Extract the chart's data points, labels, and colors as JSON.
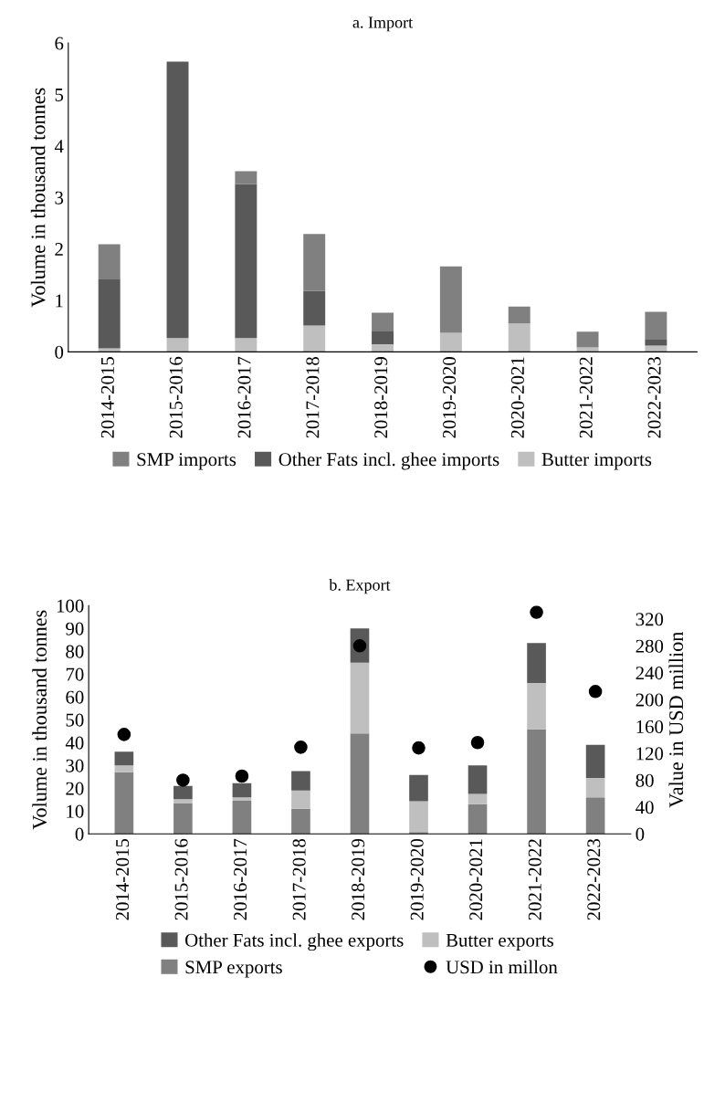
{
  "chart_data": [
    {
      "type": "bar",
      "title": "a. Import",
      "ylabel": "Volume in thousand tonnes",
      "stacked": true,
      "legend": "bottom",
      "grid": false,
      "categories": [
        "2014-2015",
        "2015-2016",
        "2016-2017",
        "2017-2018",
        "2018-2019",
        "2019-2020",
        "2020-2021",
        "2021-2022",
        "2022-2023"
      ],
      "ylim": [
        0,
        6
      ],
      "yticks": [
        0,
        1,
        2,
        3,
        4,
        5,
        6
      ],
      "series": [
        {
          "name": "Butter imports",
          "color": "#bfbfbf",
          "values": [
            0.07,
            0.27,
            0.27,
            0.51,
            0.15,
            0.37,
            0.55,
            0.09,
            0.12
          ]
        },
        {
          "name": "Other Fats incl. ghee imports",
          "color": "#595959",
          "values": [
            1.35,
            5.37,
            2.99,
            0.67,
            0.26,
            0,
            0,
            0.02,
            0.13
          ]
        },
        {
          "name": "SMP imports",
          "color": "#808080",
          "values": [
            0.67,
            0,
            0.25,
            1.11,
            0.35,
            1.29,
            0.33,
            0.28,
            0.53
          ]
        }
      ]
    },
    {
      "type": "bar",
      "title": "b. Export",
      "ylabel": "Volume in thousand tonnes",
      "y2label": "Value in USD million",
      "stacked": true,
      "legend": "bottom",
      "grid": false,
      "categories": [
        "2014-2015",
        "2015-2016",
        "2016-2017",
        "2017-2018",
        "2018-2019",
        "2019-2020",
        "2020-2021",
        "2021-2022",
        "2022-2023"
      ],
      "ylim": [
        0,
        100
      ],
      "yticks": [
        0,
        10,
        20,
        30,
        40,
        50,
        60,
        70,
        80,
        90,
        100
      ],
      "y2lim": [
        0,
        340
      ],
      "y2ticks": [
        0,
        40,
        80,
        120,
        160,
        200,
        240,
        280,
        320
      ],
      "series": [
        {
          "name": "SMP exports",
          "color": "#808080",
          "values": [
            27,
            13.5,
            14.5,
            11,
            44,
            0.8,
            13,
            45.8,
            16
          ]
        },
        {
          "name": "Butter exports",
          "color": "#bfbfbf",
          "values": [
            3,
            1.7,
            1.5,
            8,
            31,
            13.5,
            4.5,
            20.3,
            8.5
          ]
        },
        {
          "name": "Other Fats incl. ghee exports",
          "color": "#595959",
          "values": [
            6,
            5.8,
            6.2,
            8.5,
            15,
            11.5,
            12.5,
            17.5,
            14.5
          ]
        },
        {
          "name": "USD in millon",
          "type": "scatter",
          "axis": "y2",
          "marker": "circle",
          "color": "#000000",
          "values": [
            148,
            80,
            86,
            129,
            280,
            128,
            136,
            330,
            212
          ]
        }
      ]
    }
  ]
}
